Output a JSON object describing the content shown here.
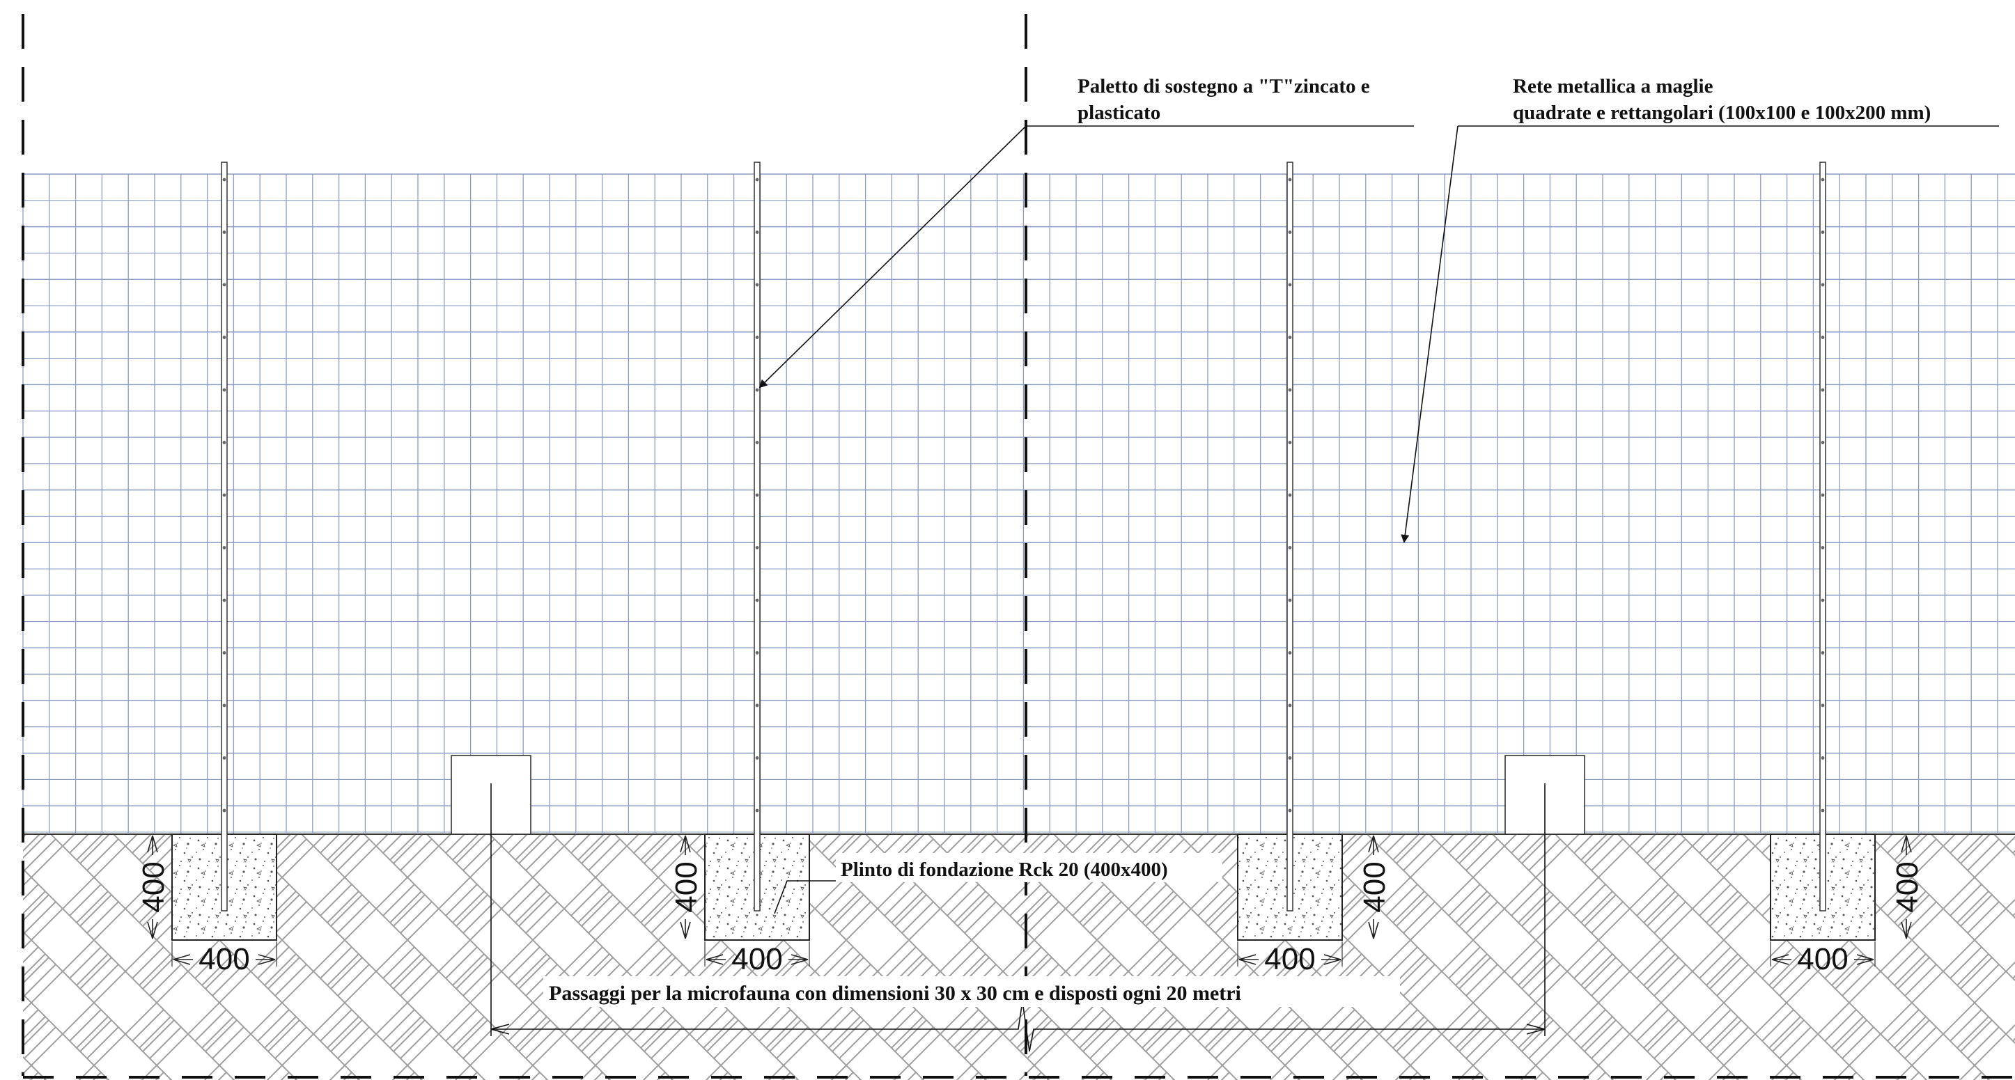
{
  "labels": {
    "post": "Paletto di sostegno a \"T\"zincato e plasticato",
    "mesh_line1": "Rete metallica a maglie",
    "mesh_line2": "quadrate e rettangolari (100x100 e 100x200 mm)",
    "plinth": "Plinto di fondazione Rck 20 (400x400)",
    "passages": "Passaggi per la microfauna con dimensioni  30 x 30 cm e disposti ogni 20 metri"
  },
  "dimensions": {
    "plinth_width": "400",
    "plinth_depth": "400"
  },
  "colors": {
    "mesh": "#8a9bc4",
    "ink": "#1a1a1a",
    "hatch": "#9a9a9a"
  }
}
